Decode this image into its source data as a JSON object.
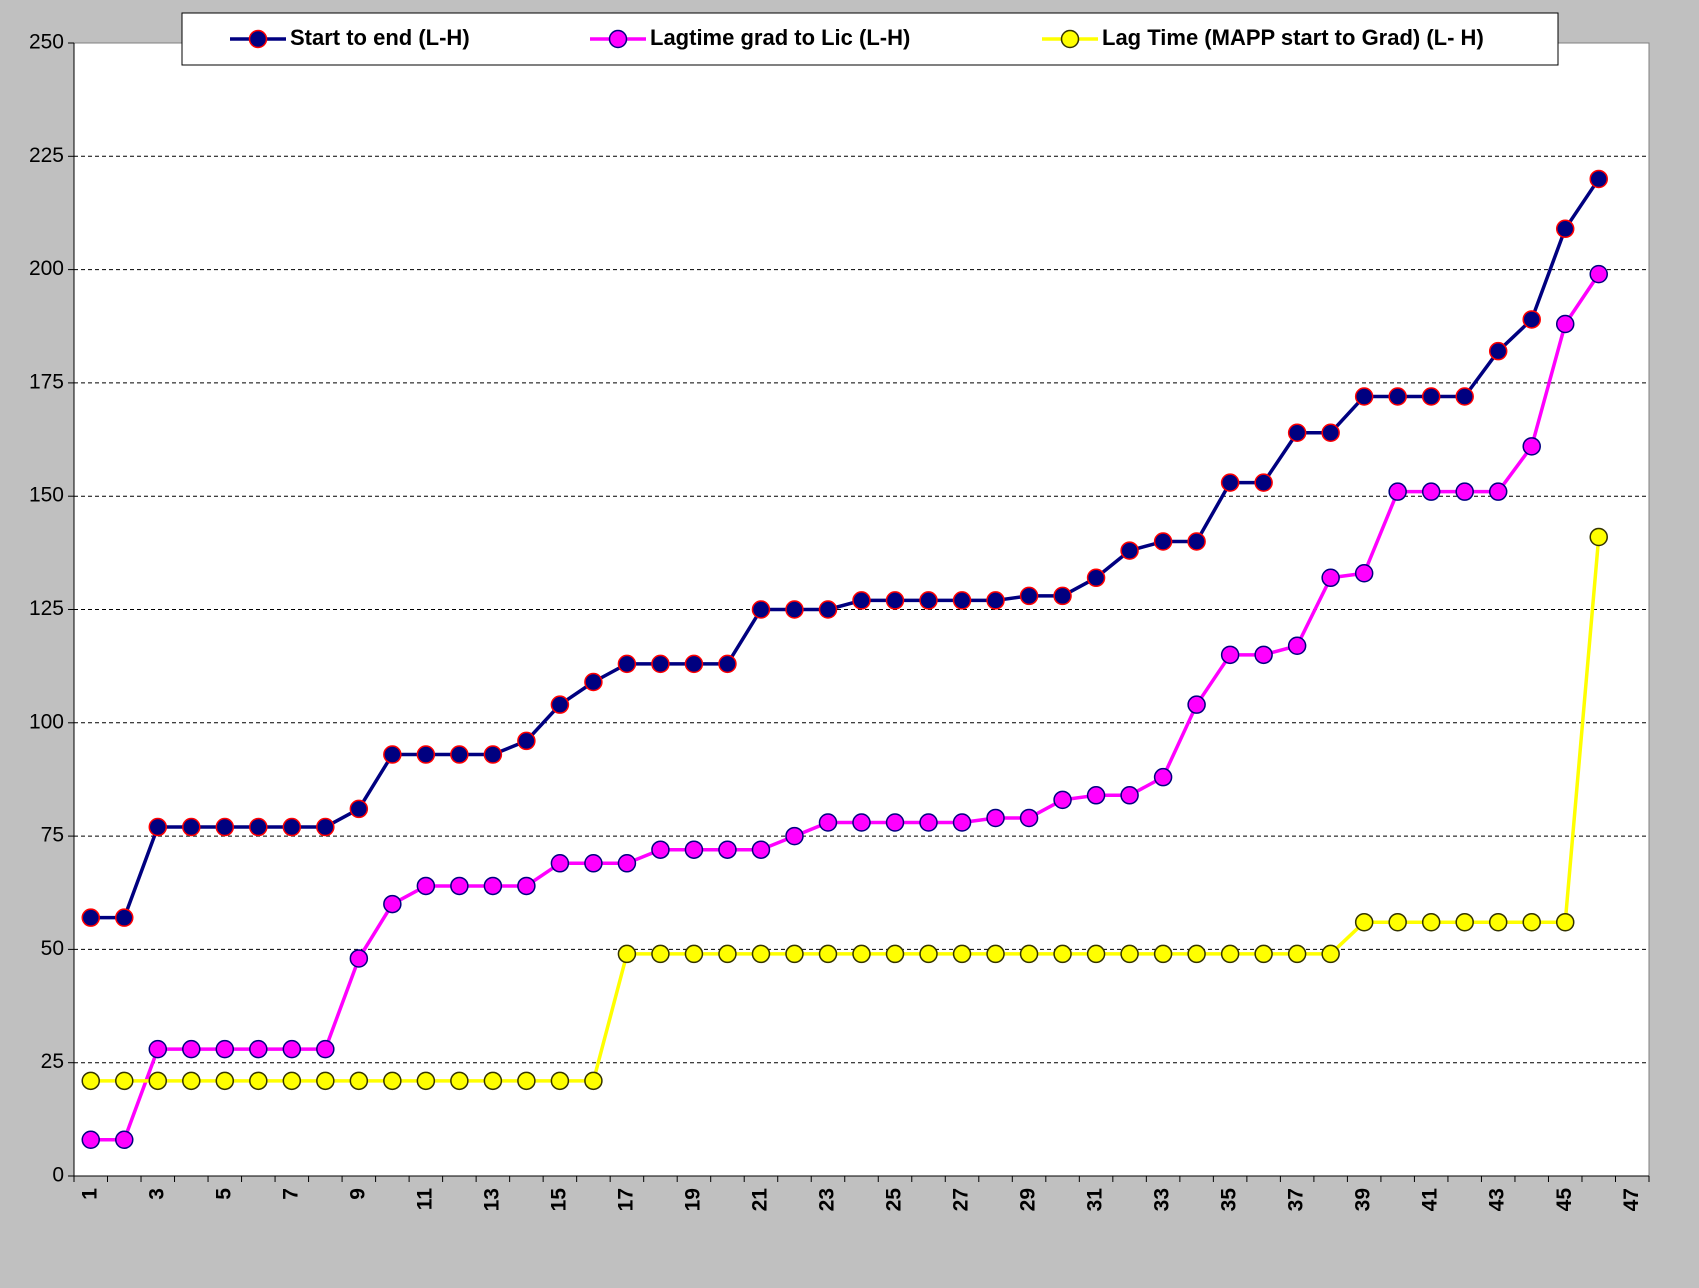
{
  "chart_data": {
    "type": "line",
    "categories": [
      "1",
      null,
      "3",
      null,
      "5",
      null,
      "7",
      null,
      "9",
      null,
      "11",
      null,
      "13",
      null,
      "15",
      null,
      "17",
      null,
      "19",
      null,
      "21",
      null,
      "23",
      null,
      "25",
      null,
      "27",
      null,
      "29",
      null,
      "31",
      null,
      "33",
      null,
      "35",
      null,
      "37",
      null,
      "39",
      null,
      "41",
      null,
      "43",
      null,
      "45",
      null,
      "47"
    ],
    "series": [
      {
        "name": "Start to end (L-H)",
        "color": "#000080",
        "marker_fill": "#000080",
        "marker_edge": "#ff0000",
        "values": [
          57,
          57,
          77,
          77,
          77,
          77,
          77,
          77,
          81,
          93,
          93,
          93,
          93,
          96,
          104,
          109,
          113,
          113,
          113,
          113,
          125,
          125,
          125,
          127,
          127,
          127,
          127,
          127,
          128,
          128,
          132,
          138,
          140,
          140,
          153,
          153,
          164,
          164,
          172,
          172,
          172,
          172,
          182,
          189,
          209,
          220,
          null
        ]
      },
      {
        "name": "Lagtime grad to Lic (L-H)",
        "color": "#ff00ff",
        "marker_fill": "#ff00ff",
        "marker_edge": "#000080",
        "values": [
          8,
          8,
          28,
          28,
          28,
          28,
          28,
          28,
          48,
          60,
          64,
          64,
          64,
          64,
          69,
          69,
          69,
          72,
          72,
          72,
          72,
          75,
          78,
          78,
          78,
          78,
          78,
          79,
          79,
          83,
          84,
          84,
          88,
          104,
          115,
          115,
          117,
          132,
          133,
          151,
          151,
          151,
          151,
          161,
          188,
          199,
          null
        ]
      },
      {
        "name": "Lag Time (MAPP start to Grad) (L- H)",
        "color": "#ffff00",
        "marker_fill": "#ffff00",
        "marker_edge": "#333300",
        "values": [
          21,
          21,
          21,
          21,
          21,
          21,
          21,
          21,
          21,
          21,
          21,
          21,
          21,
          21,
          21,
          21,
          49,
          49,
          49,
          49,
          49,
          49,
          49,
          49,
          49,
          49,
          49,
          49,
          49,
          49,
          49,
          49,
          49,
          49,
          49,
          49,
          49,
          49,
          56,
          56,
          56,
          56,
          56,
          56,
          56,
          141,
          null
        ]
      }
    ],
    "ylim": [
      0,
      250
    ],
    "yticks": [
      0,
      25,
      50,
      75,
      100,
      125,
      150,
      175,
      200,
      225,
      250
    ],
    "grid": true,
    "legend": "top"
  }
}
